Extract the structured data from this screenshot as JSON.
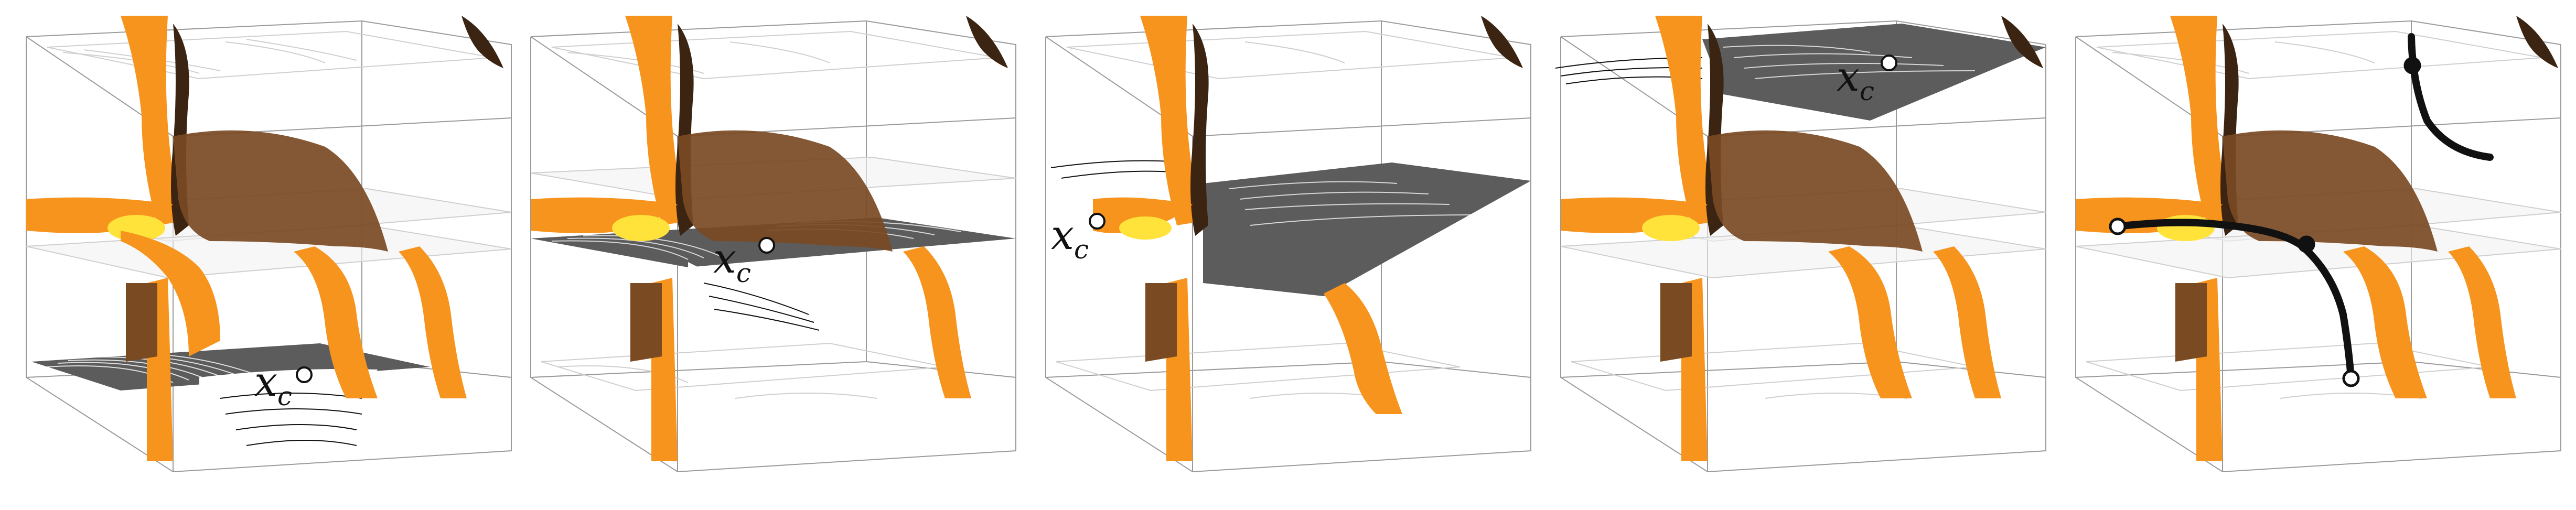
{
  "figure": {
    "panel_count": 5,
    "colors": {
      "surface_orange": "#f7941d",
      "surface_dark": "#3b2412",
      "surface_brown": "#7a4a23",
      "highlight_yellow": "#ffe23a",
      "plane_dark": "#5c5c5c",
      "contour_light": "#c8c8c8",
      "frame": "#8a8a8a",
      "path": "#111111"
    },
    "panels": [
      {
        "label_base": "x",
        "label_sub": "c",
        "slice": "bottom",
        "show_label": true
      },
      {
        "label_base": "x",
        "label_sub": "c",
        "slice": "middle",
        "show_label": true
      },
      {
        "label_base": "x",
        "label_sub": "c",
        "slice": "upper-middle",
        "show_label": true
      },
      {
        "label_base": "x",
        "label_sub": "c",
        "slice": "top",
        "show_label": true
      },
      {
        "label_base": "",
        "label_sub": "",
        "slice": "path",
        "show_label": false
      }
    ]
  }
}
